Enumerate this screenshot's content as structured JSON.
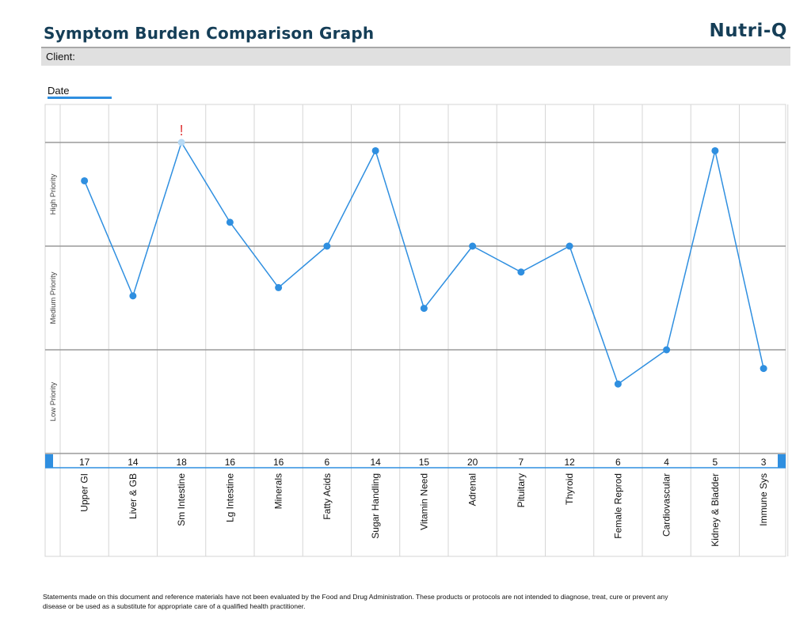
{
  "header": {
    "title": "Symptom Burden Comparison Graph",
    "brand": "Nutri-Q"
  },
  "client": {
    "label": "Client:"
  },
  "date": {
    "label": "Date"
  },
  "chart_data": {
    "type": "line",
    "title": "Symptom Burden Comparison Graph",
    "y_bands": [
      "High Priority",
      "Medium Priority",
      "Low Priority"
    ],
    "categories": [
      "Upper GI",
      "Liver & GB",
      "Sm Intestine",
      "Lg Intestine",
      "Minerals",
      "Fatty Acids",
      "Sugar Handling",
      "Vitamin Need",
      "Adrenal",
      "Pituitary",
      "Thyroid",
      "Female Reprod",
      "Cardiovascular",
      "Kidney & Bladder",
      "Immune Sys"
    ],
    "scores": [
      17,
      14,
      18,
      16,
      16,
      6,
      14,
      15,
      20,
      7,
      12,
      6,
      4,
      5,
      3
    ],
    "levels": [
      2.63,
      1.52,
      3.0,
      2.23,
      1.6,
      2.0,
      2.92,
      1.4,
      2.0,
      1.75,
      2.0,
      0.67,
      1.0,
      2.92,
      0.82
    ],
    "ylim": [
      0,
      3.35
    ],
    "band_breaks": [
      1,
      2,
      3
    ],
    "flagged_category": "Sm Intestine",
    "flag_text": "!",
    "series_color": "#2f8fe0",
    "flag_color": "#e03a3a",
    "flag_point_color": "#b7d9f4"
  },
  "footer": {
    "disclaimer": "Statements made on this document and reference materials have not been evaluated by the Food and Drug Administration. These products or protocols are not intended to diagnose, treat, cure or prevent any disease or be used as a substitute for appropriate care of a qualified health practitioner."
  }
}
